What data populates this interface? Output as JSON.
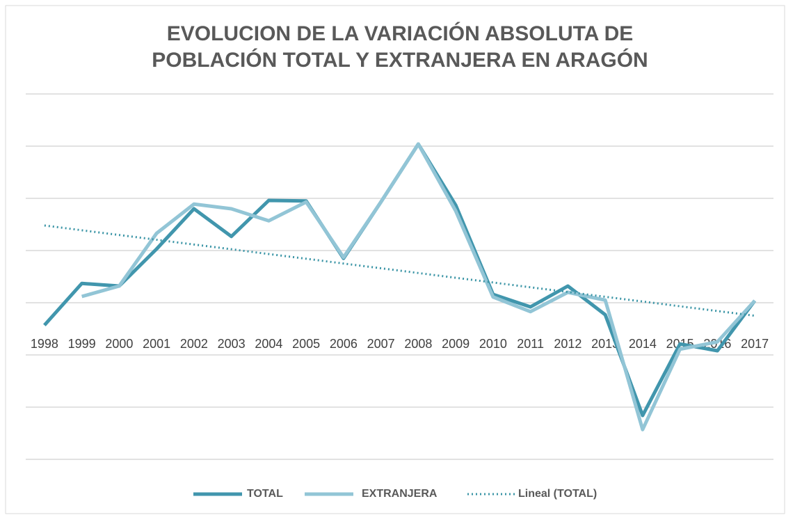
{
  "chart_data": {
    "type": "line",
    "title": [
      "EVOLUCION DE LA VARIACIÓN ABSOLUTA DE",
      "POBLACIÓN TOTAL Y EXTRANJERA  EN ARAGÓN"
    ],
    "categories": [
      "1998",
      "1999",
      "2000",
      "2001",
      "2002",
      "2003",
      "2004",
      "2005",
      "2006",
      "2007",
      "2008",
      "2009",
      "2010",
      "2011",
      "2012",
      "2013",
      "2014",
      "2015",
      "2016",
      "2017"
    ],
    "series": [
      {
        "name": "TOTAL",
        "color": "#4196ad",
        "values": [
          0.57,
          1.37,
          1.32,
          2.03,
          2.8,
          2.27,
          2.96,
          2.95,
          1.85,
          2.93,
          4.04,
          2.87,
          1.16,
          0.92,
          1.32,
          0.77,
          -1.16,
          0.21,
          0.08,
          1.04
        ]
      },
      {
        "name": "EXTRANJERA",
        "color": "#92c5d6",
        "values": [
          null,
          1.12,
          1.32,
          2.33,
          2.89,
          2.8,
          2.57,
          2.93,
          1.87,
          2.93,
          4.04,
          2.76,
          1.11,
          0.83,
          1.2,
          1.05,
          -1.43,
          0.11,
          0.25,
          1.04
        ]
      },
      {
        "name": "Lineal (TOTAL)",
        "color": "#3b95a6",
        "trendline": true
      }
    ],
    "ylim": [
      -2,
      5
    ],
    "yticks": [
      -2,
      -1,
      0,
      1,
      2,
      3,
      4,
      5
    ],
    "grid": true,
    "legend": "bottom"
  }
}
